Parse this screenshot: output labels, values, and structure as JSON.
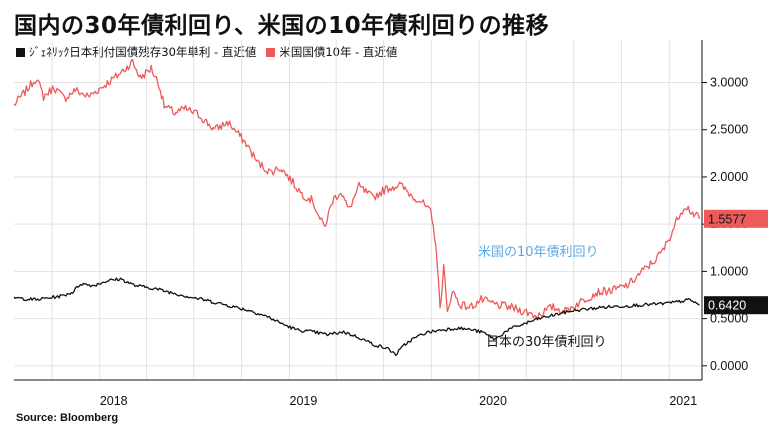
{
  "chart_data": {
    "type": "line",
    "title": "国内の30年債利回り、米国の10年債利回りの推移",
    "source": "Source:  Bloomberg",
    "xlim": [
      "2017-07-20",
      "2021-03-05"
    ],
    "ylim": [
      -0.15,
      3.45
    ],
    "y_ticks": [
      {
        "value": 0.0,
        "label": "0.0000"
      },
      {
        "value": 0.5,
        "label": "0.5000"
      },
      {
        "value": 1.0,
        "label": "1.0000"
      },
      {
        "value": 1.5,
        "label": "1.5000"
      },
      {
        "value": 2.0,
        "label": "2.0000"
      },
      {
        "value": 2.5,
        "label": "2.5000"
      },
      {
        "value": 3.0,
        "label": "3.0000"
      }
    ],
    "x_ticks": [
      {
        "date": "2018-01-01",
        "label": "2018"
      },
      {
        "date": "2019-01-01",
        "label": "2019"
      },
      {
        "date": "2020-01-01",
        "label": "2020"
      },
      {
        "date": "2021-01-01",
        "label": "2021"
      }
    ],
    "grid": true,
    "legend_position": "top-left",
    "series": [
      {
        "key": "us",
        "name": "米国国債10年 - 直近値",
        "color": "#ee5a5a",
        "annotation": "米国の10年債利回り",
        "last_label": "1.5577",
        "points": [
          [
            "2017-07-20",
            2.76
          ],
          [
            "2017-08-10",
            2.9
          ],
          [
            "2017-09-01",
            3.05
          ],
          [
            "2017-09-15",
            2.85
          ],
          [
            "2017-10-05",
            2.95
          ],
          [
            "2017-10-25",
            2.83
          ],
          [
            "2017-11-15",
            2.92
          ],
          [
            "2017-12-10",
            2.85
          ],
          [
            "2018-01-05",
            2.95
          ],
          [
            "2018-02-01",
            3.06
          ],
          [
            "2018-02-20",
            3.15
          ],
          [
            "2018-03-05",
            3.22
          ],
          [
            "2018-03-20",
            3.05
          ],
          [
            "2018-04-10",
            3.15
          ],
          [
            "2018-04-25",
            2.98
          ],
          [
            "2018-05-05",
            2.75
          ],
          [
            "2018-05-25",
            2.68
          ],
          [
            "2018-06-15",
            2.72
          ],
          [
            "2018-07-10",
            2.66
          ],
          [
            "2018-08-10",
            2.5
          ],
          [
            "2018-09-05",
            2.58
          ],
          [
            "2018-09-25",
            2.45
          ],
          [
            "2018-10-10",
            2.35
          ],
          [
            "2018-11-01",
            2.15
          ],
          [
            "2018-11-25",
            2.05
          ],
          [
            "2018-12-15",
            2.1
          ],
          [
            "2019-01-05",
            1.96
          ],
          [
            "2019-01-25",
            1.82
          ],
          [
            "2019-02-15",
            1.75
          ],
          [
            "2019-03-01",
            1.55
          ],
          [
            "2019-03-10",
            1.47
          ],
          [
            "2019-03-25",
            1.75
          ],
          [
            "2019-04-10",
            1.85
          ],
          [
            "2019-04-25",
            1.65
          ],
          [
            "2019-05-15",
            1.9
          ],
          [
            "2019-06-10",
            1.78
          ],
          [
            "2019-07-05",
            1.87
          ],
          [
            "2019-08-01",
            1.92
          ],
          [
            "2019-08-25",
            1.8
          ],
          [
            "2019-09-10",
            1.75
          ],
          [
            "2019-09-30",
            1.62
          ],
          [
            "2019-10-10",
            1.3
          ],
          [
            "2019-10-18",
            0.6
          ],
          [
            "2019-10-25",
            1.05
          ],
          [
            "2019-11-01",
            0.55
          ],
          [
            "2019-11-10",
            0.8
          ],
          [
            "2019-11-25",
            0.65
          ],
          [
            "2019-12-15",
            0.62
          ],
          [
            "2020-01-05",
            0.7
          ],
          [
            "2020-02-01",
            0.65
          ],
          [
            "2020-03-01",
            0.62
          ],
          [
            "2020-04-01",
            0.57
          ],
          [
            "2020-04-20",
            0.53
          ],
          [
            "2020-05-20",
            0.62
          ],
          [
            "2020-06-15",
            0.58
          ],
          [
            "2020-07-15",
            0.68
          ],
          [
            "2020-08-15",
            0.78
          ],
          [
            "2020-09-15",
            0.8
          ],
          [
            "2020-10-15",
            0.86
          ],
          [
            "2020-11-10",
            1.0
          ],
          [
            "2020-12-01",
            1.1
          ],
          [
            "2020-12-20",
            1.22
          ],
          [
            "2021-01-05",
            1.4
          ],
          [
            "2021-01-20",
            1.6
          ],
          [
            "2021-02-01",
            1.7
          ],
          [
            "2021-02-15",
            1.62
          ],
          [
            "2021-02-28",
            1.557
          ]
        ]
      },
      {
        "key": "jp",
        "name": "ｼﾞｪﾈﾘｯｸ日本利付国債残存30年単利 - 直近値",
        "color": "#111111",
        "annotation": "日本の30年債利回り",
        "last_label": "0.6420",
        "points": [
          [
            "2017-07-20",
            0.72
          ],
          [
            "2017-09-01",
            0.7
          ],
          [
            "2017-10-20",
            0.74
          ],
          [
            "2017-11-10",
            0.78
          ],
          [
            "2017-11-25",
            0.87
          ],
          [
            "2017-12-20",
            0.85
          ],
          [
            "2018-01-15",
            0.9
          ],
          [
            "2018-02-10",
            0.92
          ],
          [
            "2018-03-10",
            0.85
          ],
          [
            "2018-04-15",
            0.82
          ],
          [
            "2018-05-15",
            0.78
          ],
          [
            "2018-06-15",
            0.74
          ],
          [
            "2018-07-20",
            0.7
          ],
          [
            "2018-08-20",
            0.66
          ],
          [
            "2018-09-20",
            0.62
          ],
          [
            "2018-10-20",
            0.58
          ],
          [
            "2018-11-20",
            0.52
          ],
          [
            "2018-12-20",
            0.44
          ],
          [
            "2019-01-15",
            0.38
          ],
          [
            "2019-02-15",
            0.36
          ],
          [
            "2019-03-15",
            0.33
          ],
          [
            "2019-04-15",
            0.36
          ],
          [
            "2019-05-15",
            0.3
          ],
          [
            "2019-06-15",
            0.22
          ],
          [
            "2019-07-10",
            0.18
          ],
          [
            "2019-07-25",
            0.12
          ],
          [
            "2019-08-10",
            0.22
          ],
          [
            "2019-08-25",
            0.28
          ],
          [
            "2019-09-20",
            0.35
          ],
          [
            "2019-10-20",
            0.38
          ],
          [
            "2019-11-20",
            0.4
          ],
          [
            "2019-12-20",
            0.38
          ],
          [
            "2020-01-10",
            0.35
          ],
          [
            "2020-02-01",
            0.28
          ],
          [
            "2020-02-25",
            0.38
          ],
          [
            "2020-03-25",
            0.44
          ],
          [
            "2020-04-25",
            0.5
          ],
          [
            "2020-05-25",
            0.54
          ],
          [
            "2020-06-25",
            0.58
          ],
          [
            "2020-07-25",
            0.6
          ],
          [
            "2020-08-25",
            0.62
          ],
          [
            "2020-09-25",
            0.63
          ],
          [
            "2020-10-25",
            0.64
          ],
          [
            "2020-11-25",
            0.65
          ],
          [
            "2020-12-25",
            0.66
          ],
          [
            "2021-01-20",
            0.68
          ],
          [
            "2021-02-10",
            0.7
          ],
          [
            "2021-02-28",
            0.642
          ]
        ]
      }
    ]
  }
}
